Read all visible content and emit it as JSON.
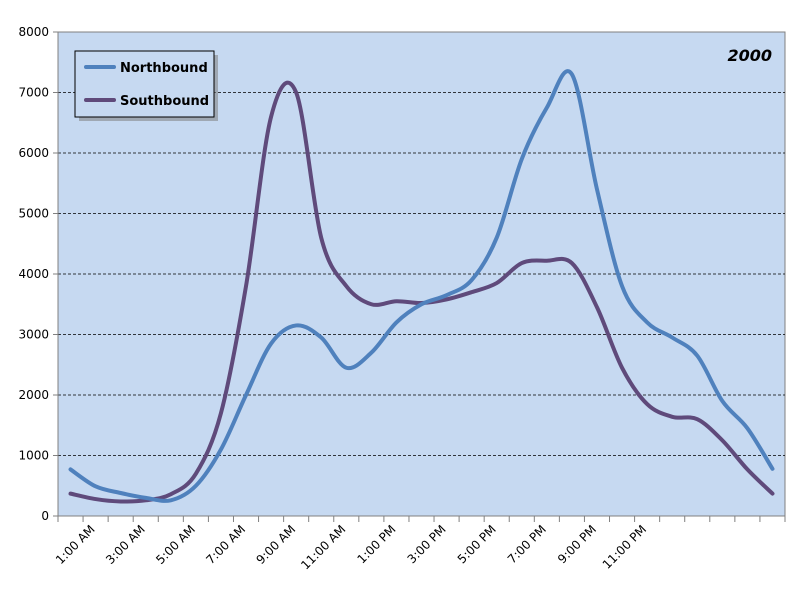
{
  "chart_data": {
    "type": "line",
    "title": "2000",
    "xlabel": "",
    "ylabel": "",
    "ylim": [
      0,
      8000
    ],
    "yticks": [
      0,
      1000,
      2000,
      3000,
      4000,
      5000,
      6000,
      7000,
      8000
    ],
    "x_tick_labels": [
      "1:00 AM",
      "3:00 AM",
      "5:00 AM",
      "7:00 AM",
      "9:00 AM",
      "11:00 AM",
      "1:00 PM",
      "3:00 PM",
      "5:00 PM",
      "7:00 PM",
      "9:00 PM",
      "11:00 PM"
    ],
    "grid": "horizontal-dashed",
    "legend_position": "top-left",
    "colors": {
      "plot_background": "#c6d9f1",
      "Northbound": "#4f81bd",
      "Southbound": "#5f4a7b"
    },
    "series": [
      {
        "name": "Northbound",
        "values": [
          770,
          490,
          380,
          300,
          260,
          500,
          1100,
          2000,
          2850,
          3150,
          2950,
          2450,
          2700,
          3200,
          3500,
          3650,
          3900,
          4600,
          5900,
          6750,
          7300,
          5400,
          3800,
          3200,
          2950,
          2650,
          1900,
          1450,
          780
        ]
      },
      {
        "name": "Southbound",
        "values": [
          370,
          280,
          240,
          260,
          360,
          700,
          1700,
          3800,
          6600,
          7000,
          4600,
          3800,
          3500,
          3550,
          3520,
          3580,
          3700,
          3850,
          4180,
          4220,
          4180,
          3450,
          2450,
          1850,
          1640,
          1600,
          1250,
          770,
          370
        ]
      }
    ]
  }
}
